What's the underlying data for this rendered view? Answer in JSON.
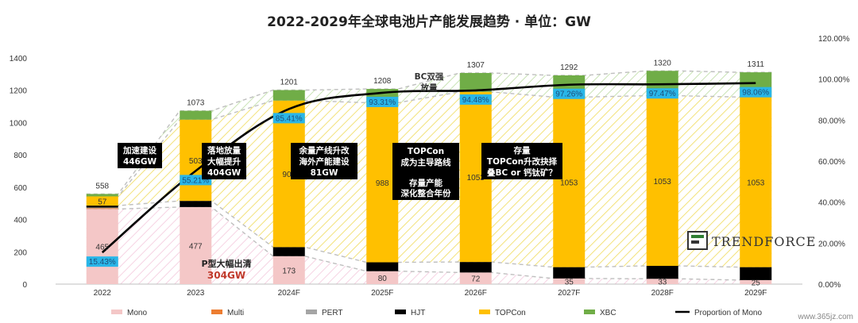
{
  "chart_data": {
    "type": "bar",
    "title": "2022-2029年全球电池片产能发展趋势 · 单位：GW",
    "categories": [
      "2022",
      "2023",
      "2024F",
      "2025F",
      "2026F",
      "2027F",
      "2028F",
      "2029F"
    ],
    "series": [
      {
        "name": "Mono",
        "color": "#f4c7c7",
        "values": [
          465,
          477,
          173,
          80,
          72,
          35,
          33,
          25
        ]
      },
      {
        "name": "Multi",
        "color": "#ed7d31",
        "values": [
          5,
          0,
          0,
          0,
          0,
          0,
          0,
          0
        ]
      },
      {
        "name": "PERT",
        "color": "#a5a5a5",
        "values": [
          4,
          0,
          0,
          0,
          0,
          0,
          0,
          0
        ]
      },
      {
        "name": "HJT",
        "color": "#000000",
        "values": [
          12,
          38,
          56,
          55,
          65,
          70,
          80,
          80
        ]
      },
      {
        "name": "TOPCon",
        "color": "#ffc000",
        "values": [
          57,
          503,
          907,
          988,
          1053,
          1053,
          1053,
          1053
        ]
      },
      {
        "name": "XBC",
        "color": "#70ad47",
        "values": [
          15,
          55,
          65,
          85,
          117,
          134,
          154,
          153
        ]
      }
    ],
    "totals": [
      558,
      1073,
      1201,
      1208,
      1307,
      1292,
      1320,
      1311
    ],
    "mono_proportion": {
      "name": "Proportion of Mono",
      "values": [
        15.43,
        55.21,
        85.41,
        93.31,
        94.48,
        97.26,
        97.47,
        98.06
      ],
      "labels": [
        "15.43%",
        "55.21%",
        "85.41%",
        "93.31%",
        "94.48%",
        "97.26%",
        "97.47%",
        "98.06%"
      ]
    },
    "y_left": {
      "min": 0,
      "max": 1400,
      "ticks": [
        "0",
        "200",
        "400",
        "600",
        "800",
        "1000",
        "1200",
        "1400"
      ]
    },
    "y_right": {
      "min": 0,
      "max": 120,
      "ticks": [
        "0.00%",
        "20.00%",
        "40.00%",
        "60.00%",
        "80.00%",
        "100.00%",
        "120.00%"
      ]
    },
    "bar_value_labels": {
      "mono": [
        "465",
        "477",
        "173",
        "80",
        "72",
        "35",
        "33",
        "25"
      ],
      "topcon": [
        "57",
        "503",
        "907",
        "988",
        "1053",
        "1053",
        "1053",
        "1053"
      ]
    },
    "legend": [
      "Mono",
      "Multi",
      "PERT",
      "HJT",
      "TOPCon",
      "XBC",
      "Proportion of Mono"
    ],
    "legend_position": "bottom",
    "grid": false
  },
  "annotations": [
    {
      "lines": [
        "加速建设",
        "446GW"
      ]
    },
    {
      "lines": [
        "落地放量",
        "大幅提升",
        "404GW"
      ]
    },
    {
      "lines": [
        "余量产线升改",
        "海外产能建设",
        "81GW"
      ]
    },
    {
      "lines": [
        "TOPCon",
        "成为主导路线",
        "",
        "存量产能",
        "深化整合年份"
      ]
    },
    {
      "lines": [
        "存量",
        "TOPCon升改抉择",
        "叠BC or 钙钛矿？"
      ]
    }
  ],
  "bc_note": [
    "BC双强",
    "放量"
  ],
  "p_note": {
    "text": "P型大幅出清",
    "value": "304GW"
  },
  "logo": {
    "text": "TRENDFORCE"
  },
  "watermark": "www.365jz.com",
  "colors": {
    "proportion_line": "#000000",
    "pct_box": "#29b6e8",
    "annot_box": "#000000",
    "dash": "#bfbfbf"
  }
}
